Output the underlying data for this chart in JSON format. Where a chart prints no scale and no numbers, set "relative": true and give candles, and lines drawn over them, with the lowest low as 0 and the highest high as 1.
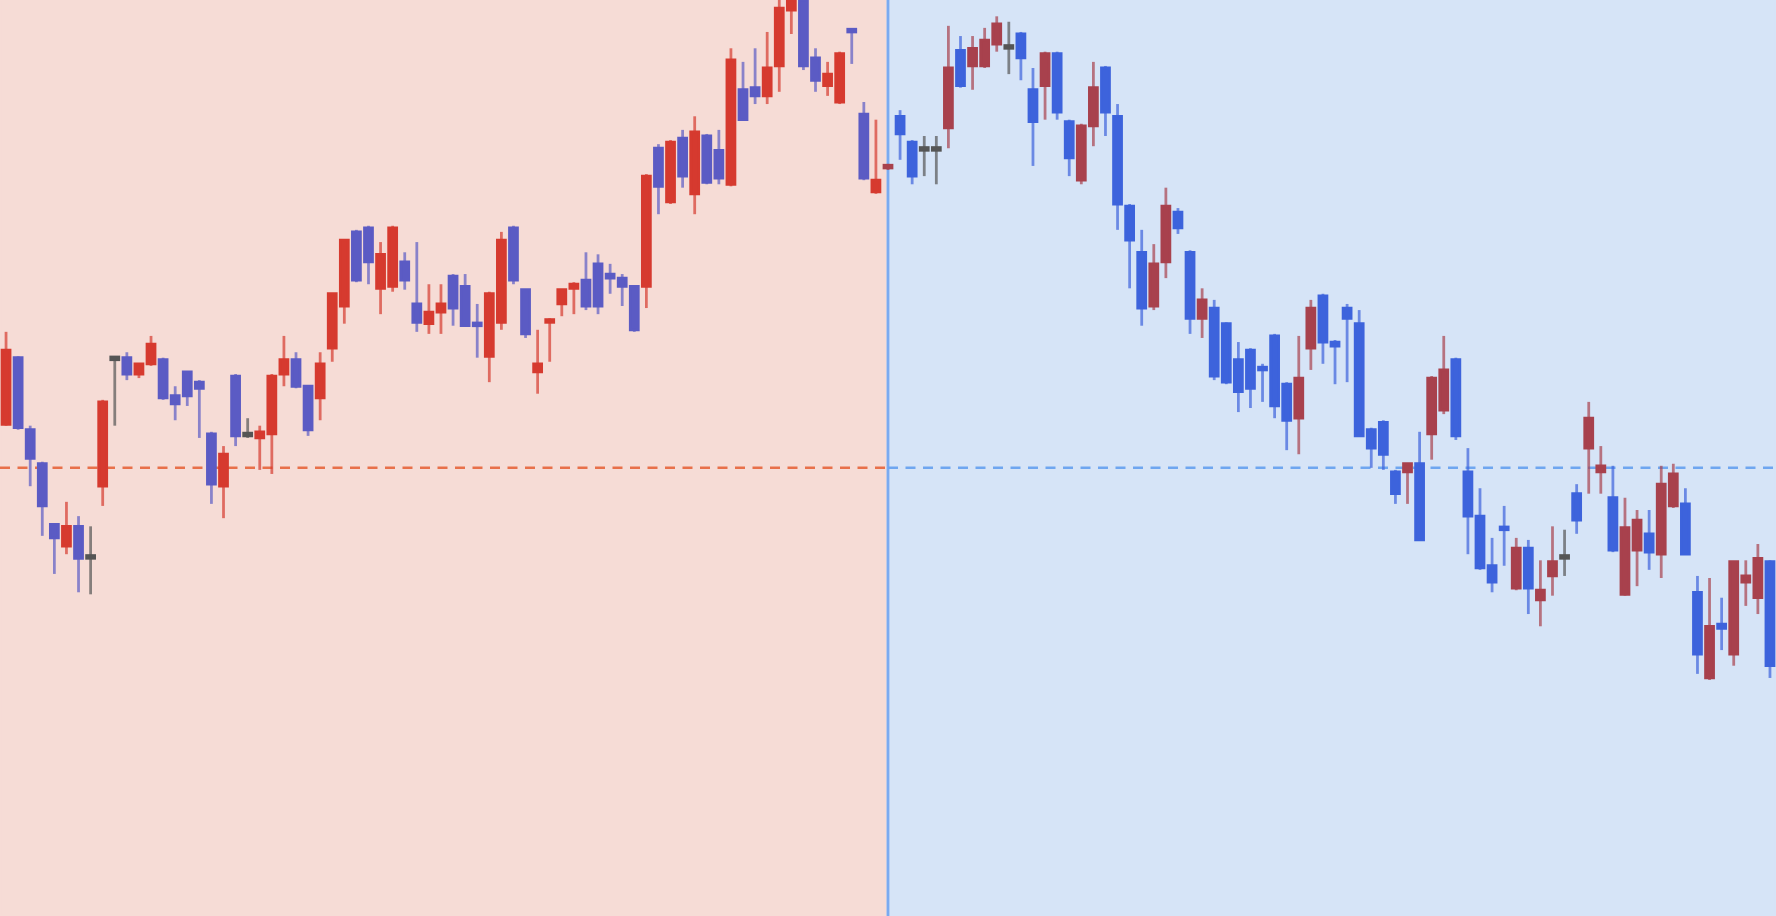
{
  "chart_data": {
    "type": "candlestick",
    "relative": true,
    "categories": [
      null,
      null,
      null,
      null,
      null,
      null,
      null,
      null,
      null,
      null,
      null,
      null,
      null,
      null,
      null,
      null,
      null,
      null,
      null,
      null,
      null,
      null,
      null,
      null,
      null,
      null,
      null,
      null,
      null,
      null,
      null,
      null,
      null,
      null,
      null,
      null,
      null,
      null,
      null,
      null,
      null,
      null,
      null,
      null,
      null,
      null,
      null,
      null,
      null,
      null,
      null,
      null,
      null,
      null,
      null,
      null,
      null,
      null,
      null,
      null,
      null,
      null,
      null,
      null,
      null,
      null,
      null,
      null,
      null,
      null,
      null,
      null,
      null,
      null,
      null,
      null,
      null,
      null,
      null,
      null,
      null,
      null,
      null,
      null,
      null,
      null,
      null,
      null,
      null,
      null,
      null,
      null,
      null,
      null,
      null,
      null,
      null,
      null,
      null,
      null,
      null,
      null,
      null,
      null,
      null,
      null,
      null,
      null,
      null,
      null,
      null,
      null,
      null,
      null,
      null,
      null,
      null,
      null,
      null,
      null,
      null,
      null,
      null,
      null,
      null,
      null,
      null,
      null,
      null,
      null,
      null,
      null,
      null,
      null,
      null,
      null,
      null,
      null,
      null,
      null,
      null,
      null,
      null,
      null,
      null,
      null,
      null
    ],
    "ohlc": [
      [
        0.376,
        0.512,
        0.374,
        0.485
      ],
      [
        0.474,
        0.476,
        0.368,
        0.371
      ],
      [
        0.368,
        0.374,
        0.285,
        0.326
      ],
      [
        0.318,
        0.321,
        0.212,
        0.256
      ],
      [
        0.229,
        0.229,
        0.156,
        0.209
      ],
      [
        0.197,
        0.262,
        0.185,
        0.226
      ],
      [
        0.226,
        0.241,
        0.129,
        0.179
      ],
      [
        0.179,
        0.226,
        0.126,
        0.179
      ],
      [
        0.285,
        0.412,
        0.256,
        0.409
      ],
      [
        0.471,
        0.476,
        0.374,
        0.471
      ],
      [
        0.474,
        0.482,
        0.441,
        0.45
      ],
      [
        0.45,
        0.465,
        0.444,
        0.465
      ],
      [
        0.465,
        0.506,
        0.462,
        0.494
      ],
      [
        0.471,
        0.474,
        0.412,
        0.415
      ],
      [
        0.418,
        0.432,
        0.382,
        0.406
      ],
      [
        0.453,
        0.453,
        0.403,
        0.418
      ],
      [
        0.438,
        0.441,
        0.356,
        0.429
      ],
      [
        0.362,
        0.365,
        0.259,
        0.288
      ],
      [
        0.285,
        0.344,
        0.238,
        0.332
      ],
      [
        0.447,
        0.45,
        0.344,
        0.359
      ],
      [
        0.359,
        0.385,
        0.356,
        0.359
      ],
      [
        0.356,
        0.374,
        0.309,
        0.365
      ],
      [
        0.362,
        0.45,
        0.303,
        0.447
      ],
      [
        0.45,
        0.506,
        0.432,
        0.471
      ],
      [
        0.471,
        0.482,
        0.429,
        0.432
      ],
      [
        0.432,
        0.432,
        0.359,
        0.368
      ],
      [
        0.415,
        0.482,
        0.382,
        0.465
      ],
      [
        0.488,
        0.568,
        0.468,
        0.568
      ],
      [
        0.55,
        0.647,
        0.524,
        0.647
      ],
      [
        0.659,
        0.662,
        0.585,
        0.588
      ],
      [
        0.665,
        0.668,
        0.582,
        0.615
      ],
      [
        0.576,
        0.644,
        0.538,
        0.626
      ],
      [
        0.579,
        0.668,
        0.571,
        0.665
      ],
      [
        0.615,
        0.629,
        0.574,
        0.588
      ],
      [
        0.553,
        0.644,
        0.512,
        0.526
      ],
      [
        0.524,
        0.582,
        0.509,
        0.541
      ],
      [
        0.541,
        0.582,
        0.509,
        0.553
      ],
      [
        0.594,
        0.597,
        0.521,
        0.547
      ],
      [
        0.579,
        0.597,
        0.521,
        0.521
      ],
      [
        0.524,
        0.553,
        0.474,
        0.521
      ],
      [
        0.476,
        0.571,
        0.438,
        0.568
      ],
      [
        0.526,
        0.659,
        0.515,
        0.647
      ],
      [
        0.665,
        0.668,
        0.582,
        0.588
      ],
      [
        0.574,
        0.574,
        0.503,
        0.509
      ],
      [
        0.453,
        0.515,
        0.421,
        0.465
      ],
      [
        0.526,
        0.532,
        0.468,
        0.529
      ],
      [
        0.553,
        0.574,
        0.535,
        0.574
      ],
      [
        0.576,
        0.585,
        0.538,
        0.582
      ],
      [
        0.588,
        0.629,
        0.544,
        0.55
      ],
      [
        0.612,
        0.626,
        0.538,
        0.55
      ],
      [
        0.597,
        0.612,
        0.568,
        0.591
      ],
      [
        0.591,
        0.597,
        0.55,
        0.579
      ],
      [
        0.579,
        0.579,
        0.512,
        0.515
      ],
      [
        0.579,
        0.744,
        0.547,
        0.741
      ],
      [
        0.782,
        0.788,
        0.685,
        0.726
      ],
      [
        0.703,
        0.794,
        0.7,
        0.791
      ],
      [
        0.797,
        0.809,
        0.724,
        0.741
      ],
      [
        0.715,
        0.829,
        0.685,
        0.806
      ],
      [
        0.8,
        0.803,
        0.729,
        0.732
      ],
      [
        0.779,
        0.809,
        0.729,
        0.738
      ],
      [
        0.729,
        0.929,
        0.726,
        0.912
      ],
      [
        0.868,
        0.909,
        0.824,
        0.824
      ],
      [
        0.871,
        0.929,
        0.847,
        0.859
      ],
      [
        0.859,
        0.953,
        0.847,
        0.9
      ],
      [
        0.903,
        1,
        0.865,
        0.988
      ],
      [
        0.985,
        1,
        0.95,
        1
      ],
      [
        1,
        1,
        0.897,
        0.903
      ],
      [
        0.915,
        0.929,
        0.865,
        0.882
      ],
      [
        0.874,
        0.909,
        0.859,
        0.891
      ],
      [
        0.85,
        0.924,
        0.847,
        0.921
      ],
      [
        0.956,
        0.956,
        0.906,
        0.953
      ],
      [
        0.832,
        0.85,
        0.735,
        0.738
      ],
      [
        0.718,
        0.824,
        0.715,
        0.735
      ],
      [
        0.753,
        0.759,
        0.75,
        0.756
      ],
      [
        0.829,
        0.838,
        0.765,
        0.803
      ],
      [
        0.791,
        0.794,
        0.729,
        0.741
      ],
      [
        0.779,
        0.8,
        0.741,
        0.779
      ],
      [
        0.779,
        0.8,
        0.729,
        0.779
      ],
      [
        0.812,
        0.962,
        0.782,
        0.9
      ],
      [
        0.926,
        0.947,
        0.871,
        0.874
      ],
      [
        0.903,
        0.947,
        0.868,
        0.929
      ],
      [
        0.903,
        0.959,
        0.9,
        0.941
      ],
      [
        0.935,
        0.976,
        0.924,
        0.965
      ],
      [
        0.929,
        0.968,
        0.891,
        0.929
      ],
      [
        0.95,
        0.953,
        0.882,
        0.915
      ],
      [
        0.868,
        0.9,
        0.756,
        0.821
      ],
      [
        0.874,
        0.924,
        0.824,
        0.921
      ],
      [
        0.921,
        0.924,
        0.824,
        0.835
      ],
      [
        0.821,
        0.824,
        0.741,
        0.768
      ],
      [
        0.735,
        0.818,
        0.729,
        0.815
      ],
      [
        0.815,
        0.909,
        0.785,
        0.871
      ],
      [
        0.9,
        0.903,
        0.8,
        0.835
      ],
      [
        0.829,
        0.847,
        0.662,
        0.7
      ],
      [
        0.697,
        0.7,
        0.576,
        0.647
      ],
      [
        0.629,
        0.662,
        0.521,
        0.547
      ],
      [
        0.55,
        0.641,
        0.544,
        0.612
      ],
      [
        0.615,
        0.724,
        0.591,
        0.697
      ],
      [
        0.688,
        0.694,
        0.656,
        0.665
      ],
      [
        0.629,
        0.632,
        0.509,
        0.532
      ],
      [
        0.532,
        0.576,
        0.503,
        0.559
      ],
      [
        0.547,
        0.559,
        0.441,
        0.447
      ],
      [
        0.524,
        0.526,
        0.435,
        0.438
      ],
      [
        0.471,
        0.497,
        0.394,
        0.424
      ],
      [
        0.485,
        0.488,
        0.4,
        0.429
      ],
      [
        0.456,
        0.465,
        0.409,
        0.456
      ],
      [
        0.506,
        0.509,
        0.385,
        0.403
      ],
      [
        0.435,
        0.438,
        0.338,
        0.382
      ],
      [
        0.385,
        0.506,
        0.332,
        0.444
      ],
      [
        0.488,
        0.559,
        0.456,
        0.547
      ],
      [
        0.565,
        0.568,
        0.465,
        0.497
      ],
      [
        0.497,
        0.5,
        0.435,
        0.491
      ],
      [
        0.547,
        0.553,
        0.438,
        0.532
      ],
      [
        0.524,
        0.544,
        0.359,
        0.359
      ],
      [
        0.368,
        0.371,
        0.312,
        0.341
      ],
      [
        0.379,
        0.382,
        0.309,
        0.332
      ],
      [
        0.306,
        0.309,
        0.259,
        0.274
      ],
      [
        0.306,
        0.318,
        0.259,
        0.318
      ],
      [
        0.318,
        0.365,
        0.206,
        0.206
      ],
      [
        0.362,
        0.447,
        0.324,
        0.444
      ],
      [
        0.397,
        0.506,
        0.391,
        0.456
      ],
      [
        0.471,
        0.474,
        0.353,
        0.359
      ],
      [
        0.306,
        0.341,
        0.185,
        0.241
      ],
      [
        0.241,
        0.282,
        0.162,
        0.165
      ],
      [
        0.168,
        0.209,
        0.129,
        0.144
      ],
      [
        0.224,
        0.256,
        0.168,
        0.221
      ],
      [
        0.135,
        0.209,
        0.132,
        0.194
      ],
      [
        0.194,
        0.206,
        0.097,
        0.135
      ],
      [
        0.118,
        0.176,
        0.079,
        0.132
      ],
      [
        0.153,
        0.226,
        0.124,
        0.174
      ],
      [
        0.179,
        0.221,
        0.153,
        0.179
      ],
      [
        0.274,
        0.288,
        0.215,
        0.235
      ],
      [
        0.341,
        0.409,
        0.274,
        0.385
      ],
      [
        0.306,
        0.344,
        0.274,
        0.315
      ],
      [
        0.268,
        0.315,
        0.188,
        0.191
      ],
      [
        0.126,
        0.268,
        0.124,
        0.224
      ],
      [
        0.191,
        0.25,
        0.138,
        0.235
      ],
      [
        0.215,
        0.25,
        0.162,
        0.188
      ],
      [
        0.185,
        0.315,
        0.15,
        0.288
      ],
      [
        0.256,
        0.318,
        0.253,
        0.303
      ],
      [
        0.259,
        0.282,
        0.185,
        0.185
      ],
      [
        0.129,
        0.153,
        0.009,
        0.038
      ],
      [
        0.003,
        0.15,
        0,
        0.079
      ],
      [
        0.082,
        0.121,
        0.044,
        0.076
      ],
      [
        0.038,
        0.174,
        0.021,
        0.174
      ],
      [
        0.144,
        0.176,
        0.109,
        0.153
      ],
      [
        0.121,
        0.2,
        0.097,
        0.179
      ],
      [
        0.174,
        0.176,
        0.003,
        0.021
      ]
    ],
    "colors": [
      "#d63a2f",
      "#5b5bc4",
      "#5b5bc4",
      "#5b5bc4",
      "#5b5bc4",
      "#d63a2f",
      "#5b5bc4",
      "#555555",
      "#d63a2f",
      "#555555",
      "#5b5bc4",
      "#d63a2f",
      "#d63a2f",
      "#5b5bc4",
      "#5b5bc4",
      "#5b5bc4",
      "#5b5bc4",
      "#5b5bc4",
      "#d63a2f",
      "#5b5bc4",
      "#555555",
      "#d63a2f",
      "#d63a2f",
      "#d63a2f",
      "#5b5bc4",
      "#5b5bc4",
      "#d63a2f",
      "#d63a2f",
      "#d63a2f",
      "#5b5bc4",
      "#5b5bc4",
      "#d63a2f",
      "#d63a2f",
      "#5b5bc4",
      "#5b5bc4",
      "#d63a2f",
      "#d63a2f",
      "#5b5bc4",
      "#5b5bc4",
      "#5b5bc4",
      "#d63a2f",
      "#d63a2f",
      "#5b5bc4",
      "#5b5bc4",
      "#d63a2f",
      "#d63a2f",
      "#d63a2f",
      "#d63a2f",
      "#5b5bc4",
      "#5b5bc4",
      "#5b5bc4",
      "#5b5bc4",
      "#5b5bc4",
      "#d63a2f",
      "#5b5bc4",
      "#d63a2f",
      "#5b5bc4",
      "#d63a2f",
      "#5b5bc4",
      "#5b5bc4",
      "#d63a2f",
      "#5b5bc4",
      "#5b5bc4",
      "#d63a2f",
      "#d63a2f",
      "#d63a2f",
      "#5b5bc4",
      "#5b5bc4",
      "#d63a2f",
      "#d63a2f",
      "#5b5bc4",
      "#5b5bc4",
      "#d63a2f",
      "#a8414d",
      "#3d63dc",
      "#3d63dc",
      "#555555",
      "#555555",
      "#a8414d",
      "#3d63dc",
      "#a8414d",
      "#a8414d",
      "#a8414d",
      "#555555",
      "#3d63dc",
      "#3d63dc",
      "#a8414d",
      "#3d63dc",
      "#3d63dc",
      "#a8414d",
      "#a8414d",
      "#3d63dc",
      "#3d63dc",
      "#3d63dc",
      "#3d63dc",
      "#a8414d",
      "#a8414d",
      "#3d63dc",
      "#3d63dc",
      "#a8414d",
      "#3d63dc",
      "#3d63dc",
      "#3d63dc",
      "#3d63dc",
      "#3d63dc",
      "#3d63dc",
      "#3d63dc",
      "#a8414d",
      "#a8414d",
      "#3d63dc",
      "#3d63dc",
      "#3d63dc",
      "#3d63dc",
      "#3d63dc",
      "#3d63dc",
      "#3d63dc",
      "#a8414d",
      "#3d63dc",
      "#a8414d",
      "#a8414d",
      "#3d63dc",
      "#3d63dc",
      "#3d63dc",
      "#3d63dc",
      "#3d63dc",
      "#a8414d",
      "#3d63dc",
      "#a8414d",
      "#a8414d",
      "#555555",
      "#3d63dc",
      "#a8414d",
      "#a8414d",
      "#3d63dc",
      "#a8414d",
      "#a8414d",
      "#3d63dc",
      "#a8414d",
      "#a8414d",
      "#3d63dc",
      "#3d63dc",
      "#a8414d",
      "#3d63dc",
      "#a8414d",
      "#a8414d",
      "#a8414d",
      "#3d63dc"
    ],
    "ref_lines": [
      {
        "axis": "y",
        "value": 0.312,
        "color": "#e8704a",
        "line_style": "dashed"
      },
      {
        "axis": "y",
        "value": 0.312,
        "color": "#6fa6f0",
        "line_style": "dashed"
      }
    ]
  }
}
